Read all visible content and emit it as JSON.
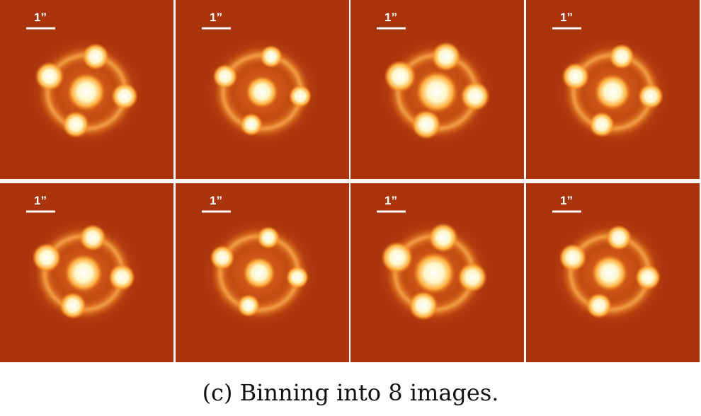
{
  "panels": [
    {
      "scale_label": "1”"
    },
    {
      "scale_label": "1”"
    },
    {
      "scale_label": "1”"
    },
    {
      "scale_label": "1”"
    },
    {
      "scale_label": "1”"
    },
    {
      "scale_label": "1”"
    },
    {
      "scale_label": "1”"
    },
    {
      "scale_label": "1”"
    }
  ],
  "caption": "(c) Binning into 8 images."
}
